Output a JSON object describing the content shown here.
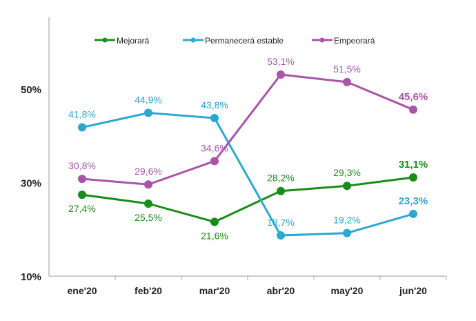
{
  "chart_data": {
    "type": "line",
    "categories": [
      "ene'20",
      "feb'20",
      "mar'20",
      "abr'20",
      "may'20",
      "jun'20"
    ],
    "ylim": [
      10,
      65
    ],
    "yticks": [
      10,
      30,
      50
    ],
    "ytick_labels": [
      "10%",
      "30%",
      "50%"
    ],
    "grid": false,
    "legend_position": "top",
    "series": [
      {
        "name": "Mejorará",
        "color": "#1a8c1a",
        "values": [
          27.4,
          25.5,
          21.6,
          28.2,
          29.3,
          31.1
        ],
        "labels": [
          "27,4%",
          "25,5%",
          "21,6%",
          "28,2%",
          "29,3%",
          "31,1%"
        ]
      },
      {
        "name": "Permanecerá estable",
        "color": "#2aa8cf",
        "values": [
          41.8,
          44.9,
          43.8,
          18.7,
          19.2,
          23.3
        ],
        "labels": [
          "41,8%",
          "44,9%",
          "43,8%",
          "18,7%",
          "19,2%",
          "23,3%"
        ]
      },
      {
        "name": "Empeorará",
        "color": "#a855a8",
        "values": [
          30.8,
          29.6,
          34.6,
          53.1,
          51.5,
          45.6
        ],
        "labels": [
          "30,8%",
          "29,6%",
          "34,6%",
          "53,1%",
          "51,5%",
          "45,6%"
        ]
      }
    ]
  }
}
